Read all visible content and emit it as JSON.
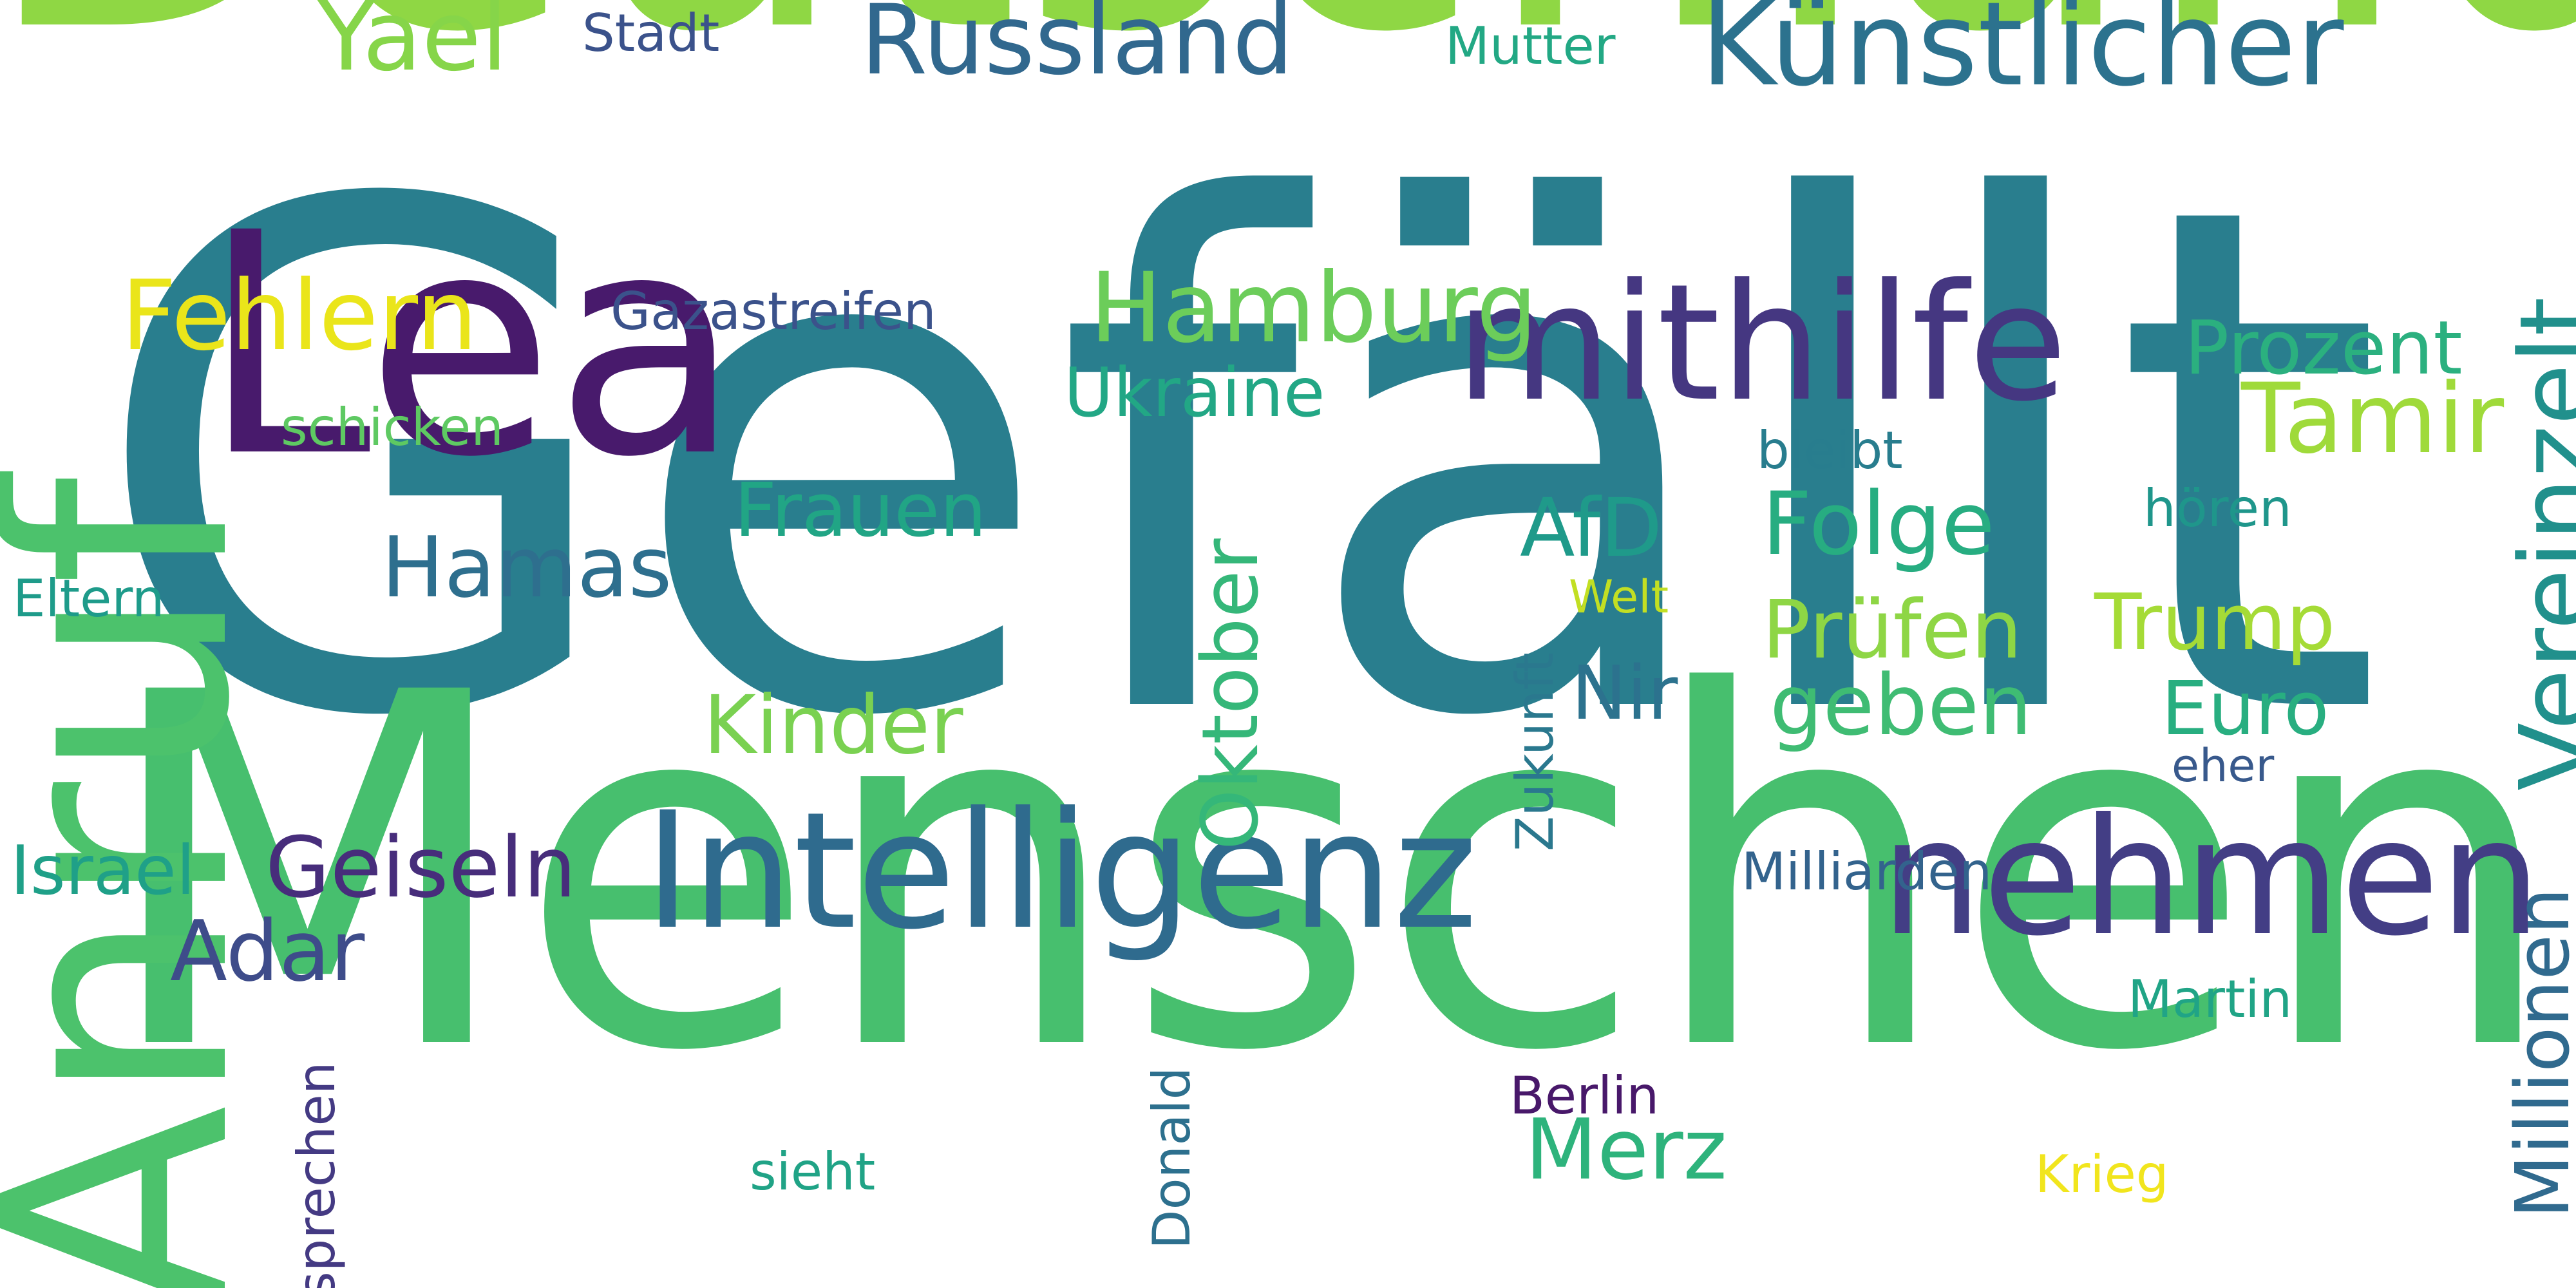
{
  "words": [
    {
      "id": "gefaellt",
      "text": "Gefällt",
      "color": "#297E8E"
    },
    {
      "id": "menschen",
      "text": "Menschen",
      "color": "#47BF6E"
    },
    {
      "id": "deutschland",
      "text": "Deutschland",
      "color": "#8FD744"
    },
    {
      "id": "anruf",
      "text": "Anruf",
      "color": "#4CC26C"
    },
    {
      "id": "lea",
      "text": "Lea",
      "color": "#481A6C"
    },
    {
      "id": "intelligenz",
      "text": "Intelligenz",
      "color": "#2F6B8E"
    },
    {
      "id": "nehmen",
      "text": "nehmen",
      "color": "#433E85"
    },
    {
      "id": "mithilfe",
      "text": "mithilfe",
      "color": "#453781"
    },
    {
      "id": "kuenstlicher",
      "text": "Künstlicher",
      "color": "#2C728E"
    },
    {
      "id": "vereinzelt",
      "text": "Vereinzelt",
      "color": "#21908C"
    },
    {
      "id": "fehlern",
      "text": "Fehlern",
      "color": "#EAE51A"
    },
    {
      "id": "hamburg",
      "text": "Hamburg",
      "color": "#6CCD5A"
    },
    {
      "id": "russland",
      "text": "Russland",
      "color": "#31688E"
    },
    {
      "id": "tamir",
      "text": "Tamir",
      "color": "#9FDA3A"
    },
    {
      "id": "millionen",
      "text": "Millionen",
      "color": "#306A8E"
    },
    {
      "id": "yael",
      "text": "Yael",
      "color": "#86D549"
    },
    {
      "id": "folge",
      "text": "Folge",
      "color": "#27AD81"
    },
    {
      "id": "geiseln",
      "text": "Geiseln",
      "color": "#472D7B"
    },
    {
      "id": "pruefen",
      "text": "Prüfen",
      "color": "#8ED645"
    },
    {
      "id": "hamas",
      "text": "Hamas",
      "color": "#2E6F8E"
    },
    {
      "id": "adar",
      "text": "Adar",
      "color": "#3E4C8A"
    },
    {
      "id": "geben",
      "text": "geben",
      "color": "#3FBC73"
    },
    {
      "id": "kinder",
      "text": "Kinder",
      "color": "#7AD151"
    },
    {
      "id": "merz",
      "text": "Merz",
      "color": "#2EB37C"
    },
    {
      "id": "oktober",
      "text": "Oktober",
      "color": "#35B779"
    },
    {
      "id": "afd",
      "text": "AfD",
      "color": "#1F9A8A"
    },
    {
      "id": "nir",
      "text": "Nir",
      "color": "#2C728E"
    },
    {
      "id": "trump",
      "text": "Trump",
      "color": "#A5DB36"
    },
    {
      "id": "prozent",
      "text": "Prozent",
      "color": "#2BB07F"
    },
    {
      "id": "frauen",
      "text": "Frauen",
      "color": "#21A585"
    },
    {
      "id": "euro",
      "text": "Euro",
      "color": "#28AE80"
    },
    {
      "id": "ukraine",
      "text": "Ukraine",
      "color": "#22A785"
    },
    {
      "id": "israel",
      "text": "Israel",
      "color": "#1FA088"
    },
    {
      "id": "krieg",
      "text": "Krieg",
      "color": "#F1E51D"
    },
    {
      "id": "eltern",
      "text": "Eltern",
      "color": "#1E9B8A"
    },
    {
      "id": "schicken",
      "text": "schicken",
      "color": "#5EC962"
    },
    {
      "id": "sprechen",
      "text": "sprechen",
      "color": "#443A83"
    },
    {
      "id": "gazastreifen",
      "text": "Gazastreifen",
      "color": "#3B528B"
    },
    {
      "id": "berlin",
      "text": "Berlin",
      "color": "#48186A"
    },
    {
      "id": "sieht",
      "text": "sieht",
      "color": "#20A386"
    },
    {
      "id": "martin",
      "text": "Martin",
      "color": "#20A486"
    },
    {
      "id": "zukunft",
      "text": "Zukunft",
      "color": "#2A788E"
    },
    {
      "id": "milliarden",
      "text": "Milliarden",
      "color": "#33638D"
    },
    {
      "id": "bleibt",
      "text": "bleibt",
      "color": "#287D8E"
    },
    {
      "id": "hoeren",
      "text": "hören",
      "color": "#1F968B"
    },
    {
      "id": "donald",
      "text": "Donald",
      "color": "#2D708E"
    },
    {
      "id": "stadt",
      "text": "Stadt",
      "color": "#3B528B"
    },
    {
      "id": "mutter",
      "text": "Mutter",
      "color": "#22A884"
    },
    {
      "id": "eher",
      "text": "eher",
      "color": "#38598C"
    },
    {
      "id": "welt",
      "text": "Welt",
      "color": "#C2DF23"
    }
  ]
}
